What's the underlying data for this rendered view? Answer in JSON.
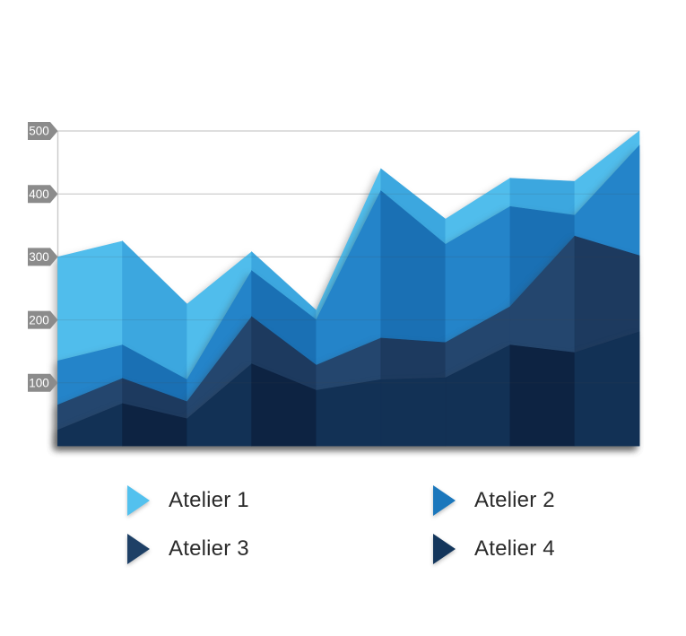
{
  "page": {
    "background_color": "#ffffff"
  },
  "axis": {
    "line_color": "#c9c9c9",
    "grid_color": "#dcdcdc",
    "grid_overlay_color": "rgba(70,70,70,0.14)",
    "tag_color": "#8b8b8b",
    "tag_text_color": "#ffffff",
    "ticks": [
      {
        "label": "500",
        "value": 500
      },
      {
        "label": "400",
        "value": 400
      },
      {
        "label": "300",
        "value": 300
      },
      {
        "label": "200",
        "value": 200
      },
      {
        "label": "100",
        "value": 100
      }
    ]
  },
  "chart_data": {
    "type": "area",
    "mode": "overlapping-layered",
    "title": "",
    "xlabel": "",
    "ylabel": "",
    "x": [
      1,
      2,
      3,
      4,
      5,
      6,
      7,
      8,
      9,
      10
    ],
    "x_tick_labels_visible": false,
    "ylim": [
      0,
      500
    ],
    "grid": true,
    "legend_position": "bottom",
    "series": [
      {
        "name": "Atelier 1",
        "values": [
          300,
          325,
          225,
          308,
          215,
          440,
          360,
          425,
          420,
          500
        ],
        "color_light": "#50bdec",
        "color_dark": "#3ca7df",
        "legend_color": "#53c1ee"
      },
      {
        "name": "Atelier 2",
        "values": [
          135,
          160,
          105,
          278,
          200,
          405,
          320,
          380,
          366,
          477
        ],
        "color_light": "#2484c9",
        "color_dark": "#1a70b4",
        "legend_color": "#1b77bc"
      },
      {
        "name": "Atelier 3",
        "values": [
          65,
          107,
          70,
          205,
          128,
          171,
          164,
          221,
          333,
          302
        ],
        "color_light": "#24466e",
        "color_dark": "#1d3a5f",
        "legend_color": "#1e4066"
      },
      {
        "name": "Atelier 4",
        "values": [
          25,
          67,
          43,
          130,
          88,
          105,
          108,
          160,
          148,
          181
        ],
        "color_light": "#123155",
        "color_dark": "#0d2342",
        "legend_color": "#14365c"
      }
    ]
  },
  "legend": {
    "items": [
      {
        "label": "Atelier 1",
        "color": "#53c1ee"
      },
      {
        "label": "Atelier 2",
        "color": "#1b77bc"
      },
      {
        "label": "Atelier 3",
        "color": "#1e4066"
      },
      {
        "label": "Atelier 4",
        "color": "#14365c"
      }
    ]
  }
}
